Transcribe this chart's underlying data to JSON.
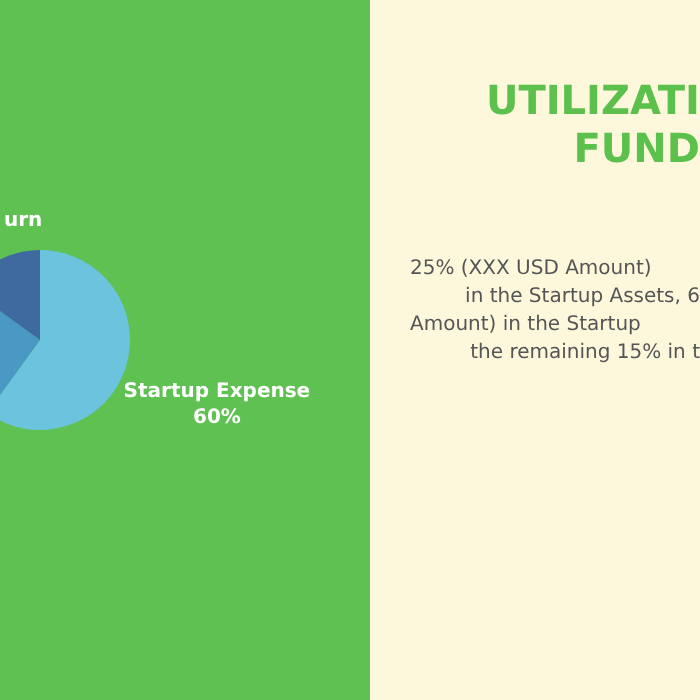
{
  "chart_data": {
    "type": "pie",
    "title": "UTILIZATI FUND",
    "categories": [
      "Startup Expense",
      null,
      "urn"
    ],
    "values": [
      60,
      25,
      15
    ],
    "colors": [
      "#6cc3dd",
      "#4a98c4",
      "#3f6aa0"
    ],
    "value_labels": [
      "60%",
      null,
      null
    ],
    "legend": false,
    "annotations": [
      "25% (XXX USD Amount)",
      "in the Startup Assets, 6",
      "Amount) in the Startup",
      "the remaining 15% in t"
    ]
  }
}
